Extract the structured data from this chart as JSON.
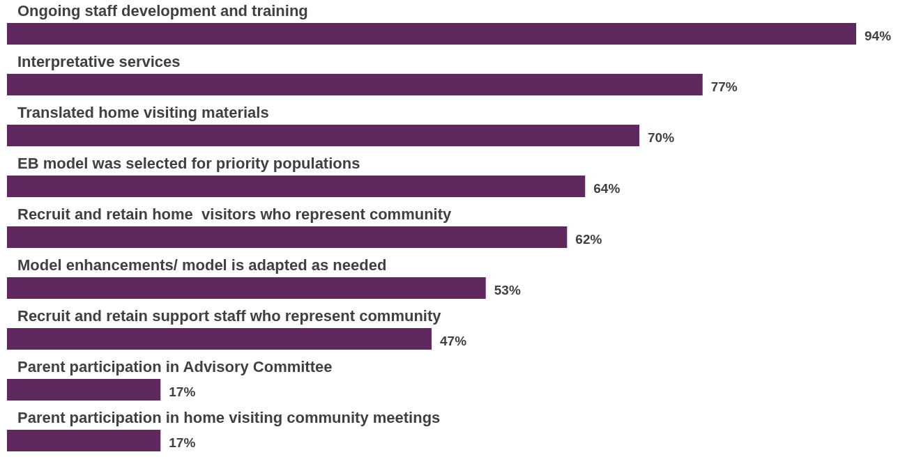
{
  "chart_data": {
    "type": "bar",
    "orientation": "horizontal",
    "categories": [
      "Ongoing staff development and training",
      "Interpretative services",
      "Translated home visiting materials",
      "EB model was selected for priority populations",
      "Recruit and retain home  visitors who represent community",
      "Model enhancements/ model is adapted as needed",
      "Recruit and retain support staff who represent community",
      "Parent participation in Advisory Committee",
      "Parent participation in home visiting community meetings"
    ],
    "values": [
      94,
      77,
      70,
      64,
      62,
      53,
      47,
      17,
      17
    ],
    "value_labels": [
      "94%",
      "77%",
      "70%",
      "64%",
      "62%",
      "53%",
      "47%",
      "17%",
      "17%"
    ],
    "color": "#5f295f",
    "xlim": [
      0,
      94
    ]
  }
}
